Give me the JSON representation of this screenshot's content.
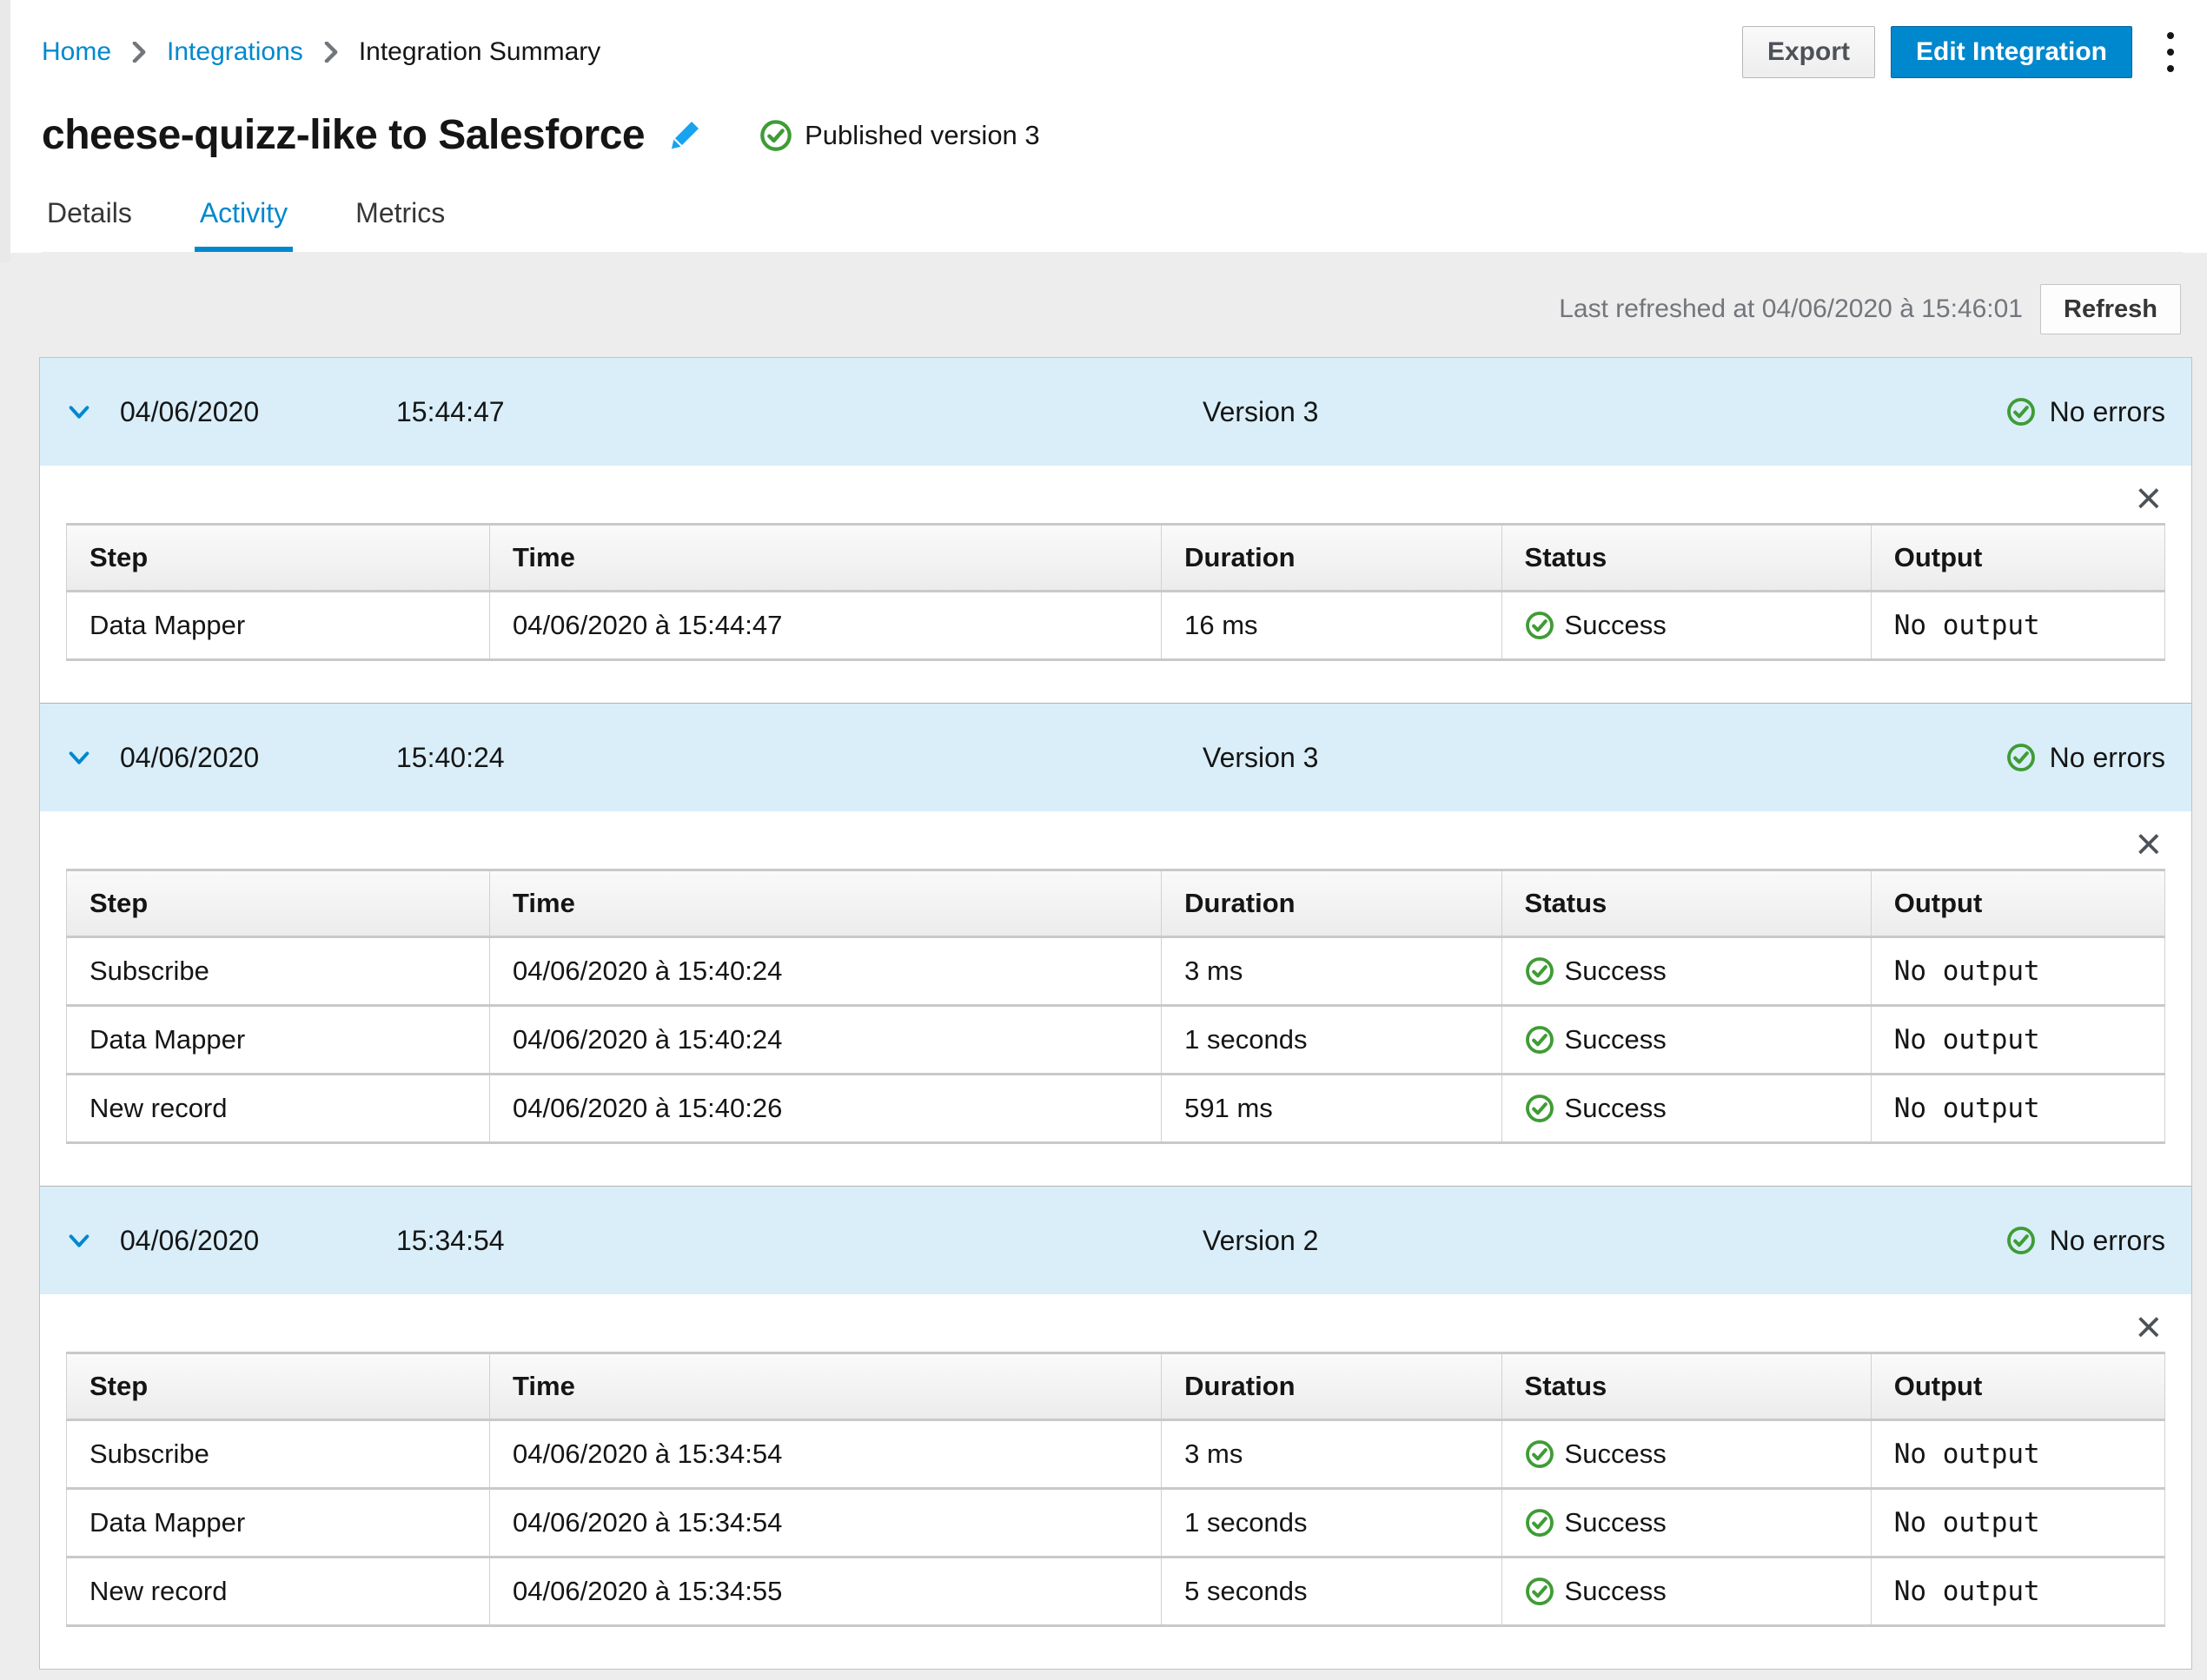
{
  "breadcrumb": {
    "items": [
      {
        "label": "Home",
        "link": true
      },
      {
        "label": "Integrations",
        "link": true
      },
      {
        "label": "Integration Summary",
        "link": false
      }
    ]
  },
  "header": {
    "title": "cheese-quizz-like to Salesforce",
    "published_status": "Published version 3",
    "export_label": "Export",
    "edit_label": "Edit Integration"
  },
  "tabs": [
    {
      "label": "Details",
      "active": false
    },
    {
      "label": "Activity",
      "active": true
    },
    {
      "label": "Metrics",
      "active": false
    }
  ],
  "toolbar": {
    "last_refreshed": "Last refreshed at 04/06/2020 à 15:46:01",
    "refresh_label": "Refresh"
  },
  "table_headers": [
    "Step",
    "Time",
    "Duration",
    "Status",
    "Output"
  ],
  "sections": [
    {
      "date": "04/06/2020",
      "time": "15:44:47",
      "version": "Version 3",
      "errors": "No errors",
      "rows": [
        {
          "step": "Data Mapper",
          "time": "04/06/2020 à 15:44:47",
          "duration": "16 ms",
          "status": "Success",
          "output": "No output"
        }
      ]
    },
    {
      "date": "04/06/2020",
      "time": "15:40:24",
      "version": "Version 3",
      "errors": "No errors",
      "rows": [
        {
          "step": "Subscribe",
          "time": "04/06/2020 à 15:40:24",
          "duration": "3 ms",
          "status": "Success",
          "output": "No output"
        },
        {
          "step": "Data Mapper",
          "time": "04/06/2020 à 15:40:24",
          "duration": "1 seconds",
          "status": "Success",
          "output": "No output"
        },
        {
          "step": "New record",
          "time": "04/06/2020 à 15:40:26",
          "duration": "591 ms",
          "status": "Success",
          "output": "No output"
        }
      ]
    },
    {
      "date": "04/06/2020",
      "time": "15:34:54",
      "version": "Version 2",
      "errors": "No errors",
      "rows": [
        {
          "step": "Subscribe",
          "time": "04/06/2020 à 15:34:54",
          "duration": "3 ms",
          "status": "Success",
          "output": "No output"
        },
        {
          "step": "Data Mapper",
          "time": "04/06/2020 à 15:34:54",
          "duration": "1 seconds",
          "status": "Success",
          "output": "No output"
        },
        {
          "step": "New record",
          "time": "04/06/2020 à 15:34:55",
          "duration": "5 seconds",
          "status": "Success",
          "output": "No output"
        }
      ]
    }
  ],
  "icons": {
    "close": "×"
  },
  "colors": {
    "accent_blue": "#0088ce",
    "success_green": "#3f9c35",
    "pencil_blue": "#18a3f0",
    "group_header_bg": "#d9eef9",
    "page_bg": "#ededed"
  }
}
